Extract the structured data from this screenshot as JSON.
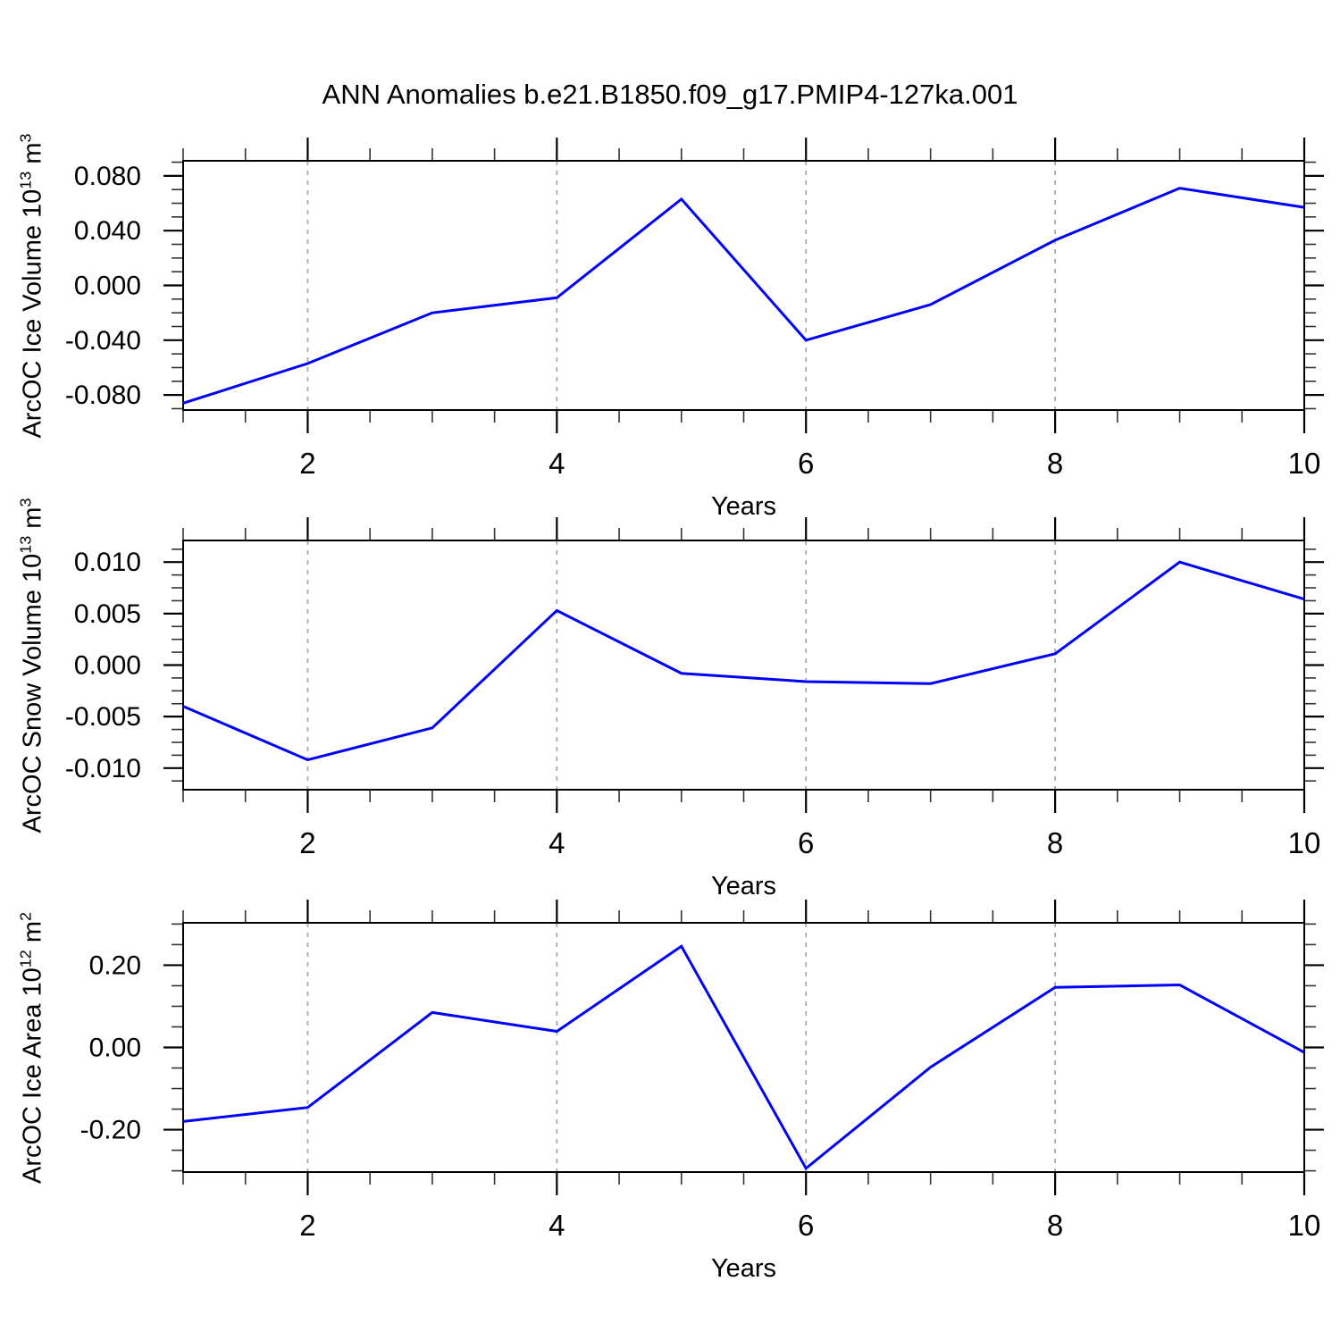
{
  "figure": {
    "title": "ANN Anomalies b.e21.B1850.f09_g17.PMIP4-127ka.001"
  },
  "chart_data": [
    {
      "type": "line",
      "name": "arcoc-ice-volume",
      "title": "",
      "xlabel": "Years",
      "ylabel_text": "ArcOC Ice Volume 10^13 m^3",
      "ylabel_parts": [
        {
          "t": "ArcOC Ice Volume 10"
        },
        {
          "t": "13",
          "sup": true
        },
        {
          "t": " m"
        },
        {
          "t": "3",
          "sup": true
        }
      ],
      "x": [
        1,
        2,
        3,
        4,
        5,
        6,
        7,
        8,
        9,
        10
      ],
      "values": [
        -0.086,
        -0.057,
        -0.02,
        -0.009,
        0.063,
        -0.04,
        -0.014,
        0.033,
        0.071,
        0.057
      ],
      "xlim": [
        1,
        10
      ],
      "ylim": [
        -0.091,
        0.091
      ],
      "xticks": {
        "values": [
          2,
          4,
          6,
          8,
          10
        ],
        "labels": [
          "2",
          "4",
          "6",
          "8",
          "10"
        ],
        "minor_step": 0.5
      },
      "yticks": {
        "values": [
          -0.08,
          -0.04,
          0.0,
          0.04,
          0.08
        ],
        "labels": [
          "-0.080",
          "-0.040",
          "0.000",
          "0.040",
          "0.080"
        ],
        "minor_step": 0.01
      },
      "grid_x": [
        2,
        4,
        6,
        8
      ],
      "grid_style": "vertical-dashed",
      "line_color": "#0000FF",
      "grid_color": "#AAAAAA"
    },
    {
      "type": "line",
      "name": "arcoc-snow-volume",
      "title": "",
      "xlabel": "Years",
      "ylabel_text": "ArcOC Snow Volume 10^13 m^3",
      "ylabel_parts": [
        {
          "t": "ArcOC Snow Volume 10"
        },
        {
          "t": "13",
          "sup": true
        },
        {
          "t": " m"
        },
        {
          "t": "3",
          "sup": true
        }
      ],
      "x": [
        1,
        2,
        3,
        4,
        5,
        6,
        7,
        8,
        9,
        10
      ],
      "values": [
        -0.004,
        -0.0092,
        -0.0061,
        0.0053,
        -0.0008,
        -0.0016,
        -0.0018,
        0.0011,
        0.01,
        0.0064
      ],
      "xlim": [
        1,
        10
      ],
      "ylim": [
        -0.0121,
        0.0121
      ],
      "xticks": {
        "values": [
          2,
          4,
          6,
          8,
          10
        ],
        "labels": [
          "2",
          "4",
          "6",
          "8",
          "10"
        ],
        "minor_step": 0.5
      },
      "yticks": {
        "values": [
          -0.01,
          -0.005,
          0.0,
          0.005,
          0.01
        ],
        "labels": [
          "-0.010",
          "-0.005",
          "0.000",
          "0.005",
          "0.010"
        ],
        "minor_step": 0.00125
      },
      "grid_x": [
        2,
        4,
        6,
        8
      ],
      "grid_style": "vertical-dashed",
      "line_color": "#0000FF",
      "grid_color": "#AAAAAA"
    },
    {
      "type": "line",
      "name": "arcoc-ice-area",
      "title": "",
      "xlabel": "Years",
      "ylabel_text": "ArcOC Ice Area 10^12 m^2",
      "ylabel_parts": [
        {
          "t": "ArcOC Ice Area 10"
        },
        {
          "t": "12",
          "sup": true
        },
        {
          "t": " m"
        },
        {
          "t": "2",
          "sup": true
        }
      ],
      "x": [
        1,
        2,
        3,
        4,
        5,
        6,
        7,
        8,
        9,
        10
      ],
      "values": [
        -0.18,
        -0.146,
        0.085,
        0.039,
        0.246,
        -0.294,
        -0.048,
        0.146,
        0.152,
        -0.012
      ],
      "xlim": [
        1,
        10
      ],
      "ylim": [
        -0.303,
        0.303
      ],
      "xticks": {
        "values": [
          2,
          4,
          6,
          8,
          10
        ],
        "labels": [
          "2",
          "4",
          "6",
          "8",
          "10"
        ],
        "minor_step": 0.5
      },
      "yticks": {
        "values": [
          -0.2,
          0.0,
          0.2
        ],
        "labels": [
          "-0.20",
          "0.00",
          "0.20"
        ],
        "minor_step": 0.05
      },
      "grid_x": [
        2,
        4,
        6,
        8
      ],
      "grid_style": "vertical-dashed",
      "line_color": "#0000FF",
      "grid_color": "#AAAAAA"
    }
  ]
}
